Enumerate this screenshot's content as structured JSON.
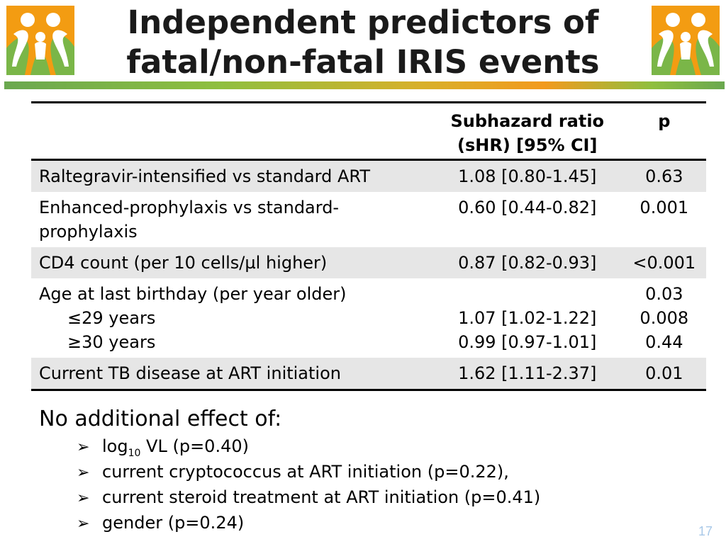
{
  "title": {
    "line1": "Independent predictors of",
    "line2": "fatal/non-fatal IRIS events"
  },
  "colors": {
    "logo_orange": "#f39c12",
    "logo_green": "#7ab648",
    "divider_green": "#6aa84f",
    "divider_orange": "#f29a1e",
    "row_shade": "#e6e6e6",
    "page_number": "#a8c8e8"
  },
  "table": {
    "headers": {
      "label": "",
      "shr_line1": "Subhazard ratio",
      "shr_line2": "(sHR) [95% CI]",
      "p": "p"
    },
    "rows": [
      {
        "label": "Raltegravir-intensified vs standard ART",
        "shr": "1.08 [0.80-1.45]",
        "p": "0.63"
      },
      {
        "label_line1": "Enhanced-prophylaxis vs standard-",
        "label_line2": "prophylaxis",
        "shr": "0.60 [0.44-0.82]",
        "p": "0.001"
      },
      {
        "label": "CD4 count (per 10 cells/µl higher)",
        "shr": "0.87 [0.82-0.93]",
        "p": "<0.001"
      },
      {
        "label": "Age at last birthday (per year older)",
        "shr": "",
        "p": "0.03",
        "sub": [
          {
            "label": "≤29 years",
            "shr": "1.07 [1.02-1.22]",
            "p": "0.008"
          },
          {
            "label": "≥30 years",
            "shr": "0.99 [0.97-1.01]",
            "p": "0.44"
          }
        ]
      },
      {
        "label": "Current TB disease at ART initiation",
        "shr": "1.62 [1.11-2.37]",
        "p": "0.01"
      }
    ]
  },
  "note": {
    "heading": "No additional effect of:",
    "bullet_icon": "arrow-bullet-icon",
    "bullets": {
      "b1_prefix": "log",
      "b1_sub": "10",
      "b1_suffix": " VL (p=0.40)",
      "b2": "current cryptococcus at ART initiation (p=0.22),",
      "b3": "current steroid treatment at ART initiation (p=0.41)",
      "b4": "gender (p=0.24)"
    }
  },
  "page_number": "17"
}
